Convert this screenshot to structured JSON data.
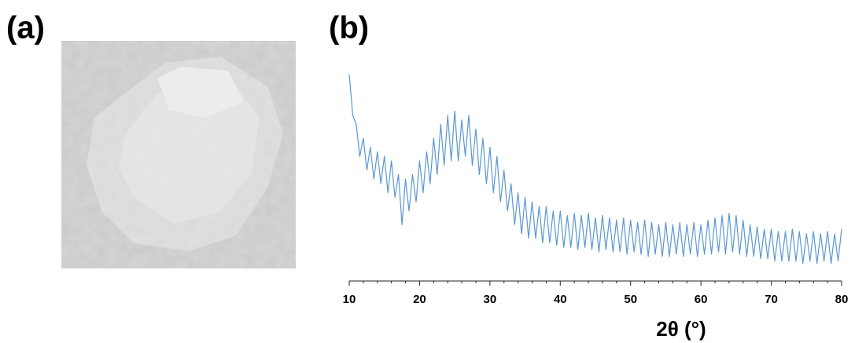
{
  "photo_panel": {
    "label": "(a)"
  },
  "chart_data": {
    "type": "line",
    "panel_label": "(b)",
    "xlabel": "2θ (°)",
    "xlim": [
      10,
      80
    ],
    "xticks": [
      10,
      20,
      30,
      40,
      50,
      60,
      70,
      80
    ],
    "xminorticks": [
      12,
      14,
      16,
      18,
      22,
      24,
      26,
      28,
      32,
      34,
      36,
      38,
      42,
      44,
      46,
      48,
      52,
      54,
      56,
      58,
      62,
      64,
      66,
      68,
      72,
      74,
      76,
      78
    ],
    "ylim": [
      0,
      100
    ],
    "color": "#5b97d6",
    "x": [
      10,
      10.5,
      11,
      11.5,
      12,
      12.5,
      13,
      13.5,
      14,
      14.5,
      15,
      15.5,
      16,
      16.5,
      17,
      17.5,
      18,
      18.5,
      19,
      19.5,
      20,
      20.5,
      21,
      21.5,
      22,
      22.5,
      23,
      23.5,
      24,
      24.5,
      25,
      25.5,
      26,
      26.5,
      27,
      27.5,
      28,
      28.5,
      29,
      29.5,
      30,
      30.5,
      31,
      31.5,
      32,
      32.5,
      33,
      33.5,
      34,
      34.5,
      35,
      35.5,
      36,
      36.5,
      37,
      37.5,
      38,
      38.5,
      39,
      39.5,
      40,
      40.5,
      41,
      41.5,
      42,
      42.5,
      43,
      43.5,
      44,
      44.5,
      45,
      45.5,
      46,
      46.5,
      47,
      47.5,
      48,
      48.5,
      49,
      49.5,
      50,
      50.5,
      51,
      51.5,
      52,
      52.5,
      53,
      53.5,
      54,
      54.5,
      55,
      55.5,
      56,
      56.5,
      57,
      57.5,
      58,
      58.5,
      59,
      59.5,
      60,
      60.5,
      61,
      61.5,
      62,
      62.5,
      63,
      63.5,
      64,
      64.5,
      65,
      65.5,
      66,
      66.5,
      67,
      67.5,
      68,
      68.5,
      69,
      69.5,
      70,
      70.5,
      71,
      71.5,
      72,
      72.5,
      73,
      73.5,
      74,
      74.5,
      75,
      75.5,
      76,
      76.5,
      77,
      77.5,
      78,
      78.5,
      79,
      79.5,
      80
    ],
    "values": [
      88,
      70,
      66,
      52,
      60,
      46,
      56,
      42,
      54,
      40,
      52,
      36,
      50,
      34,
      44,
      22,
      42,
      28,
      44,
      32,
      50,
      36,
      54,
      40,
      60,
      44,
      66,
      48,
      70,
      50,
      72,
      50,
      68,
      52,
      70,
      48,
      64,
      44,
      60,
      40,
      56,
      36,
      52,
      32,
      46,
      28,
      40,
      22,
      36,
      18,
      34,
      16,
      32,
      16,
      30,
      14,
      30,
      14,
      28,
      13,
      28,
      12,
      26,
      12,
      27,
      11,
      26,
      12,
      27,
      11,
      25,
      10,
      26,
      11,
      25,
      10,
      24,
      10,
      25,
      9,
      24,
      10,
      23,
      9,
      24,
      8,
      23,
      9,
      22,
      8,
      23,
      8,
      22,
      9,
      23,
      8,
      22,
      9,
      23,
      8,
      22,
      9,
      24,
      9,
      25,
      10,
      26,
      9,
      27,
      10,
      26,
      9,
      24,
      8,
      22,
      8,
      21,
      7,
      20,
      7,
      20,
      6,
      19,
      6,
      19,
      6,
      20,
      6,
      19,
      5,
      18,
      6,
      19,
      5,
      18,
      6,
      19,
      5,
      18,
      6,
      20
    ]
  }
}
